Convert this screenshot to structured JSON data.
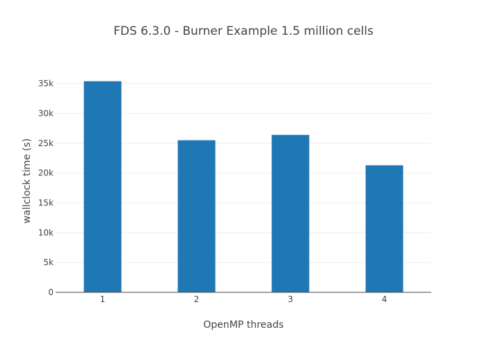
{
  "chart_data": {
    "type": "bar",
    "title": "FDS 6.3.0 - Burner Example 1.5 million cells",
    "xlabel": "OpenMP threads",
    "ylabel": "wallclock time (s)",
    "categories": [
      "1",
      "2",
      "3",
      "4"
    ],
    "values": [
      35400,
      25500,
      26400,
      21300
    ],
    "ylim": [
      0,
      37000
    ],
    "yticks": [
      0,
      5000,
      10000,
      15000,
      20000,
      25000,
      30000,
      35000
    ],
    "ytick_labels": [
      "0",
      "5k",
      "10k",
      "15k",
      "20k",
      "25k",
      "30k",
      "35k"
    ],
    "grid": true,
    "legend": "none",
    "bar_color": "#1f77b4",
    "grid_color": "#eeeeee",
    "axis_color": "#444444"
  }
}
